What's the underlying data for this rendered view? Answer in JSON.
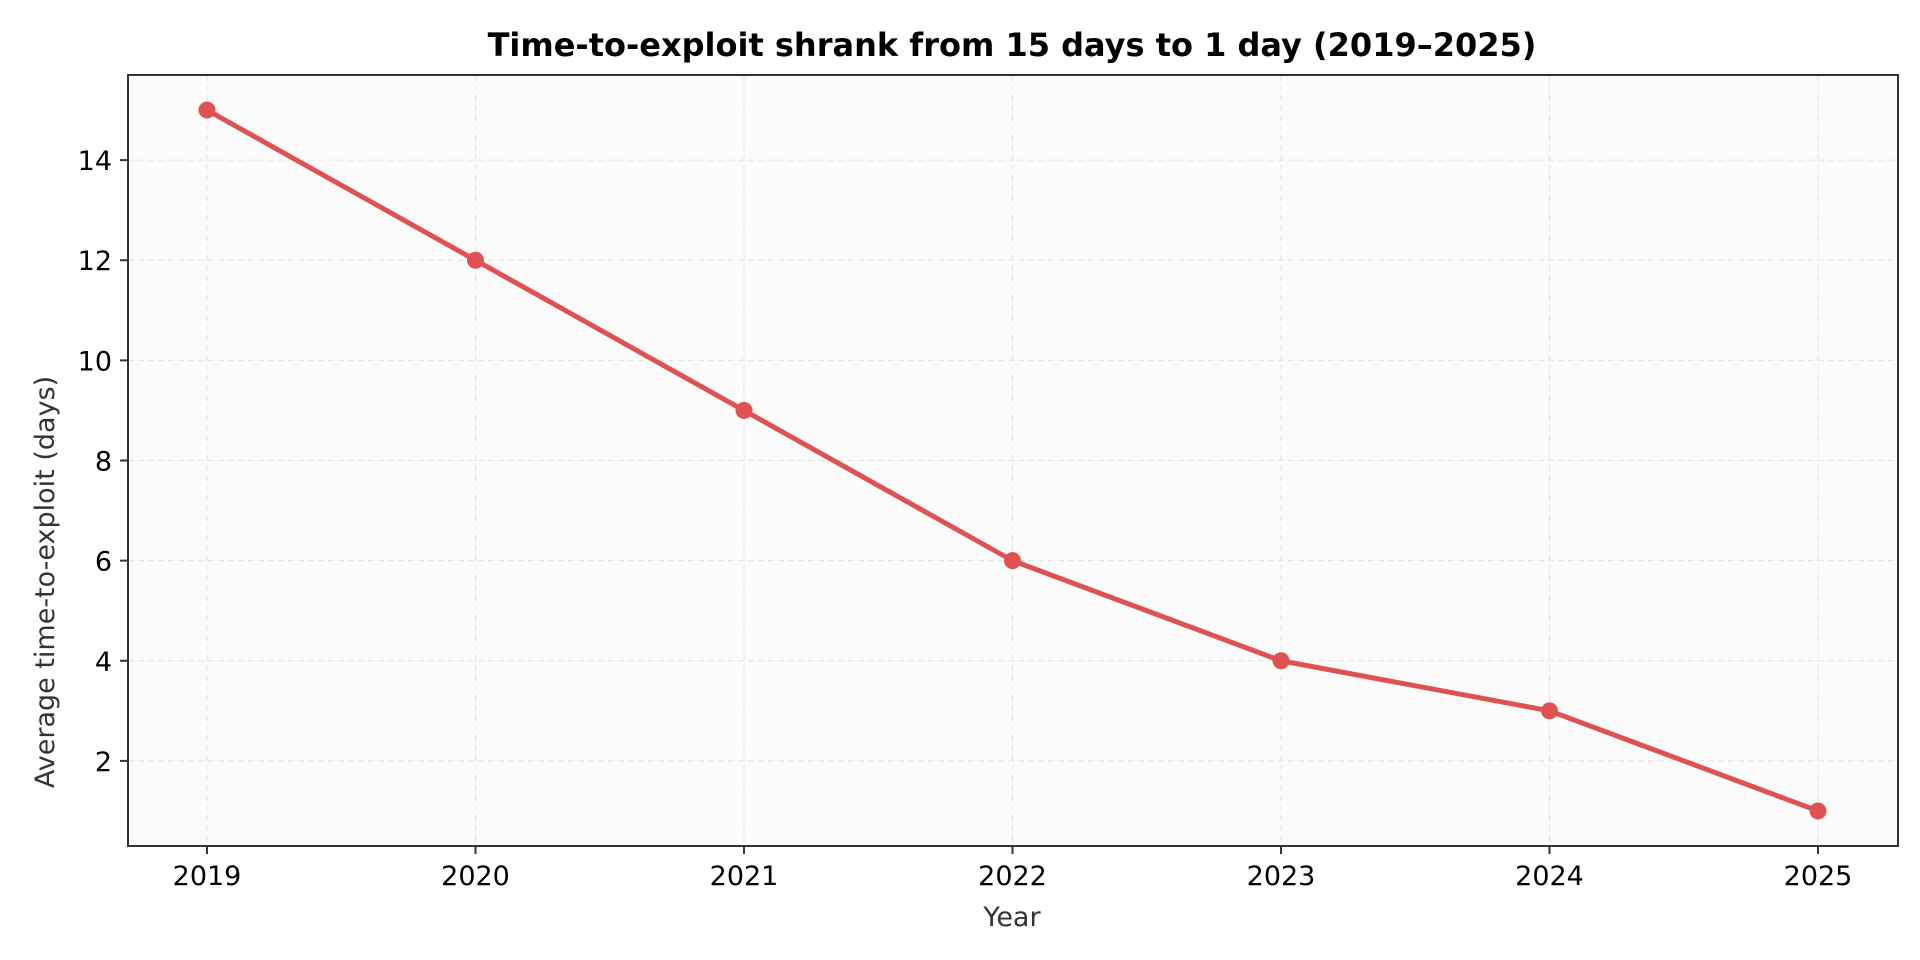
{
  "colors": {
    "series": "#e05252",
    "axis": "#333333",
    "grid": "#e3e3e3"
  },
  "chart_data": {
    "type": "line",
    "title": "Time-to-exploit shrank from 15 days to 1 day (2019–2025)",
    "xlabel": "Year",
    "ylabel": "Average time-to-exploit (days)",
    "x": [
      "2019",
      "2020",
      "2021",
      "2022",
      "2023",
      "2024",
      "2025"
    ],
    "series": [
      {
        "values": [
          15,
          12,
          9,
          6,
          4,
          3,
          1
        ]
      }
    ],
    "yticks": [
      "2",
      "4",
      "6",
      "8",
      "10",
      "12",
      "14"
    ],
    "ylim": [
      0.3,
      15.7
    ],
    "grid": true,
    "marker": "circle"
  }
}
